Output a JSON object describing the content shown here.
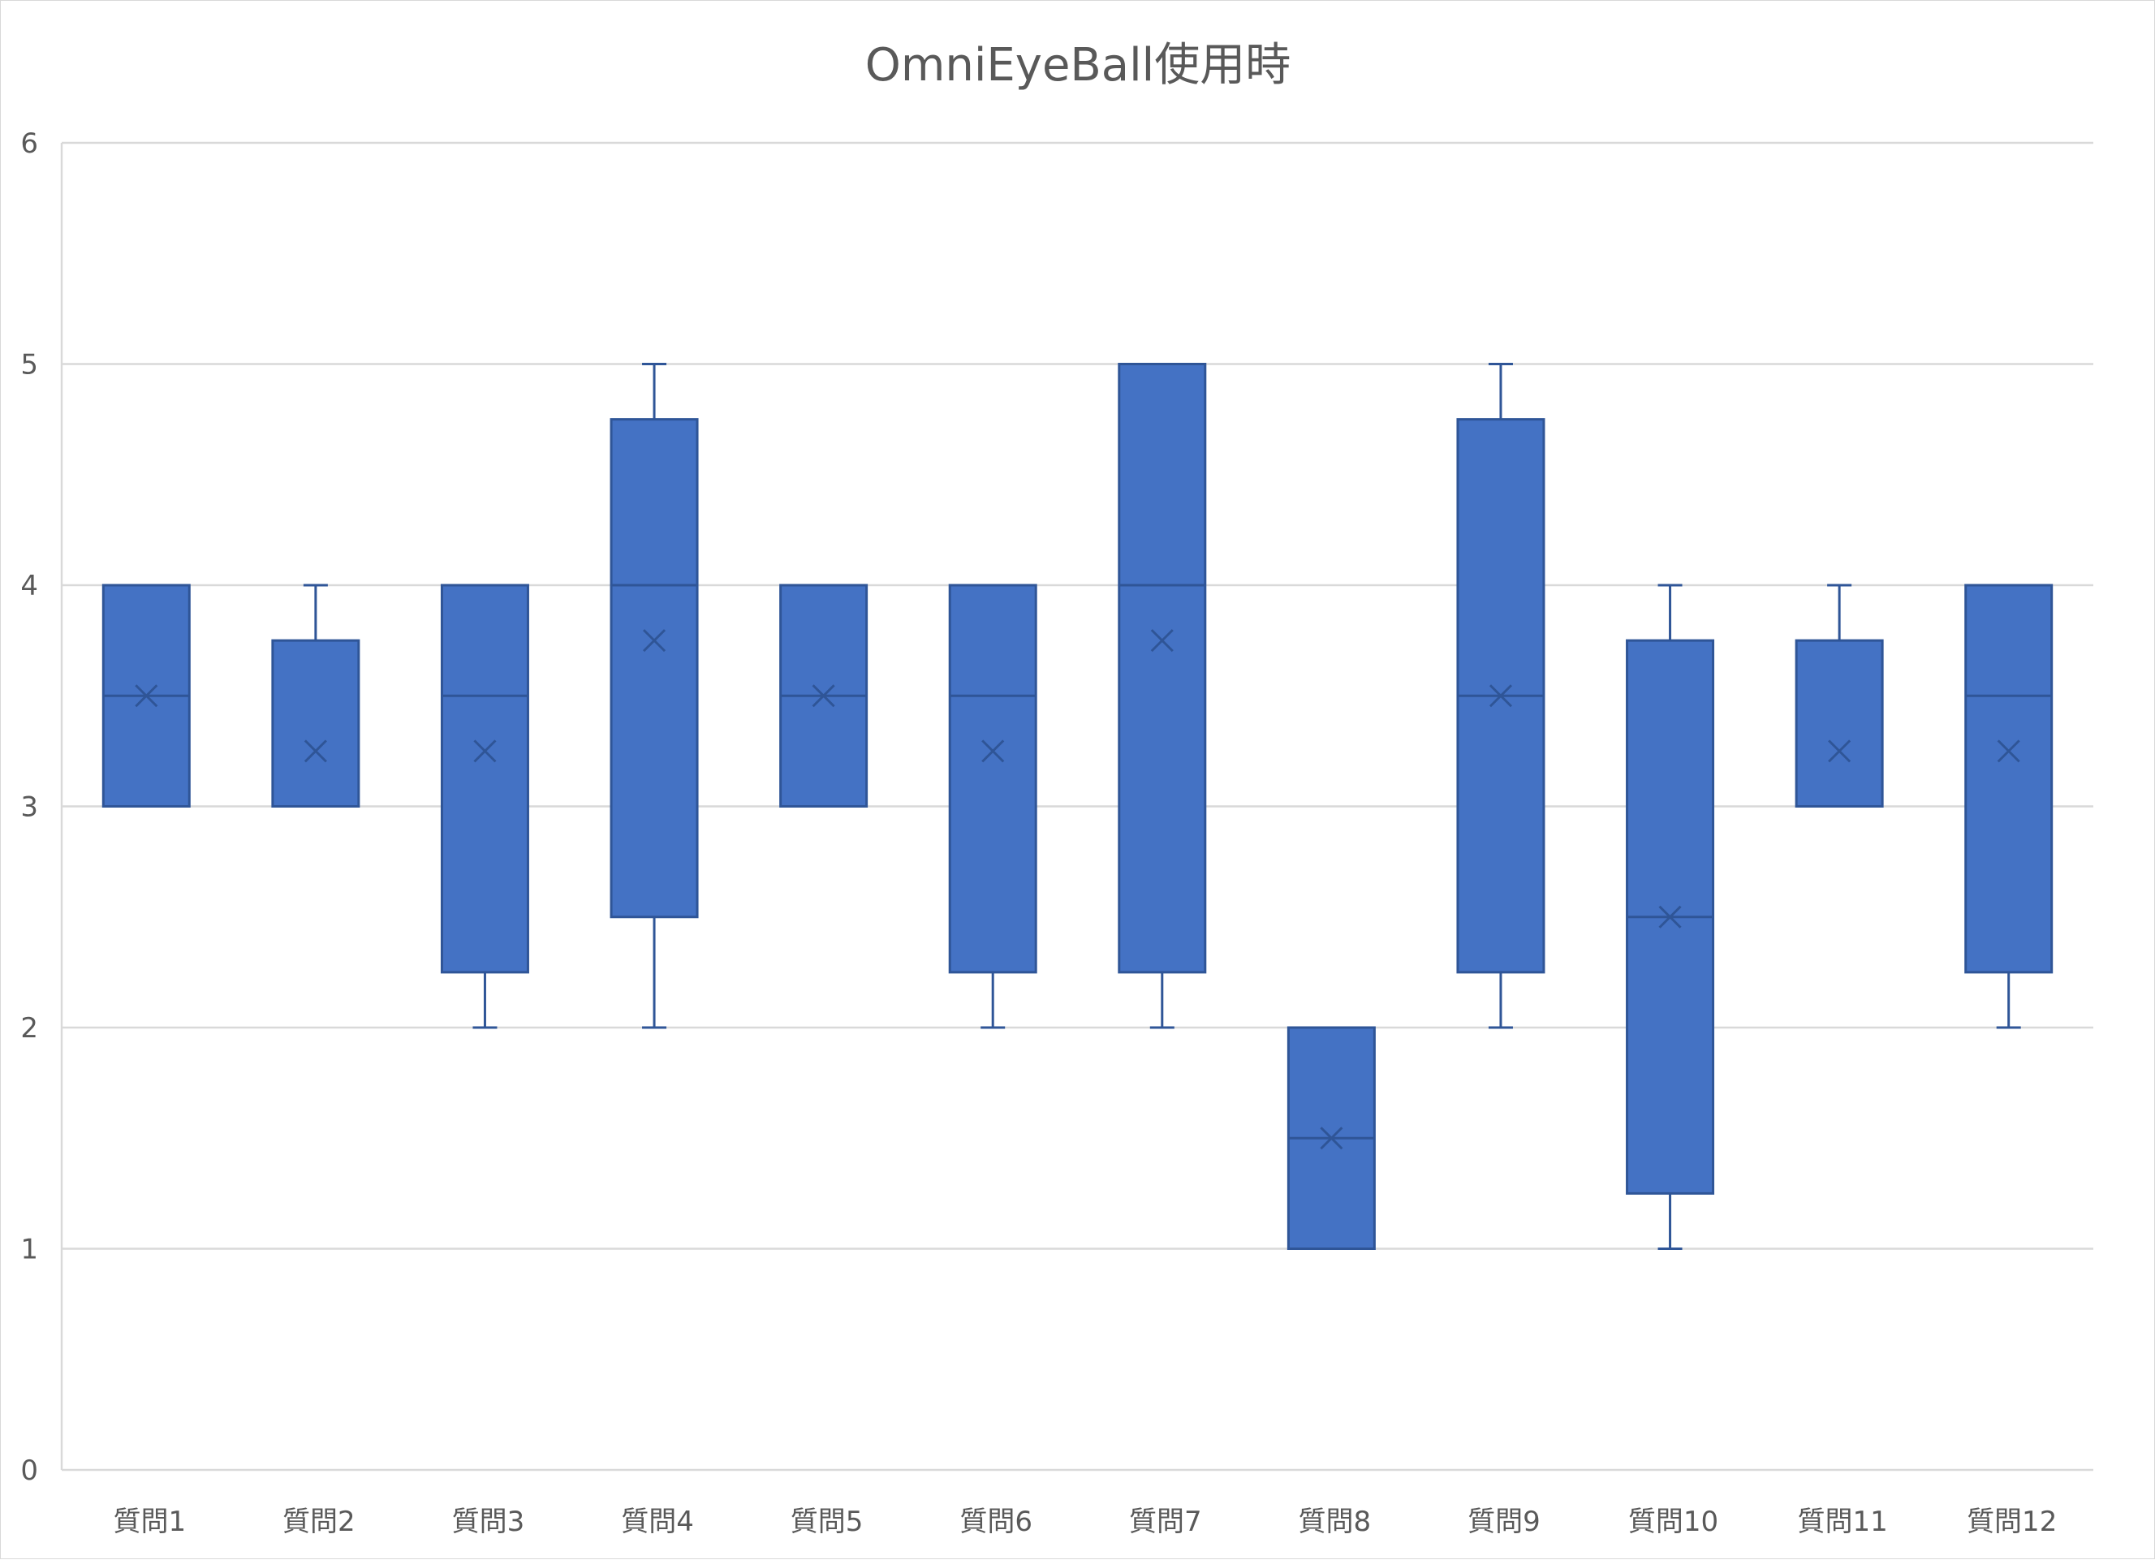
{
  "chart_data": {
    "type": "box",
    "title": "OmniEyeBall使用時",
    "xlabel": "",
    "ylabel": "",
    "ylim": [
      0,
      6
    ],
    "yticks": [
      "0",
      "1",
      "2",
      "3",
      "4",
      "5",
      "6"
    ],
    "grid": true,
    "legend": "none",
    "colors": {
      "box_fill": "#4472c4",
      "box_stroke": "#2f5597",
      "gridline": "#d9d9d9",
      "axis_text": "#595959"
    },
    "categories": [
      "質問1",
      "質問2",
      "質問3",
      "質問4",
      "質問5",
      "質問6",
      "質問7",
      "質問8",
      "質問9",
      "質問10",
      "質問11",
      "質問12"
    ],
    "boxes": [
      {
        "min": 3,
        "q1": 3,
        "median": 3.5,
        "q3": 4,
        "max": 4,
        "mean": 3.5
      },
      {
        "min": 3,
        "q1": 3,
        "median": 3,
        "q3": 3.75,
        "max": 4,
        "mean": 3.25
      },
      {
        "min": 2,
        "q1": 2.25,
        "median": 3.5,
        "q3": 4,
        "max": 4,
        "mean": 3.25
      },
      {
        "min": 2,
        "q1": 2.5,
        "median": 4,
        "q3": 4.75,
        "max": 5,
        "mean": 3.75
      },
      {
        "min": 3,
        "q1": 3,
        "median": 3.5,
        "q3": 4,
        "max": 4,
        "mean": 3.5
      },
      {
        "min": 2,
        "q1": 2.25,
        "median": 3.5,
        "q3": 4,
        "max": 4,
        "mean": 3.25
      },
      {
        "min": 2,
        "q1": 2.25,
        "median": 4,
        "q3": 5,
        "max": 5,
        "mean": 3.75
      },
      {
        "min": 1,
        "q1": 1,
        "median": 1.5,
        "q3": 2,
        "max": 2,
        "mean": 1.5
      },
      {
        "min": 2,
        "q1": 2.25,
        "median": 3.5,
        "q3": 4.75,
        "max": 5,
        "mean": 3.5
      },
      {
        "min": 1,
        "q1": 1.25,
        "median": 2.5,
        "q3": 3.75,
        "max": 4,
        "mean": 2.5
      },
      {
        "min": 3,
        "q1": 3,
        "median": 3,
        "q3": 3.75,
        "max": 4,
        "mean": 3.25
      },
      {
        "min": 2,
        "q1": 2.25,
        "median": 3.5,
        "q3": 4,
        "max": 4,
        "mean": 3.25
      }
    ]
  }
}
